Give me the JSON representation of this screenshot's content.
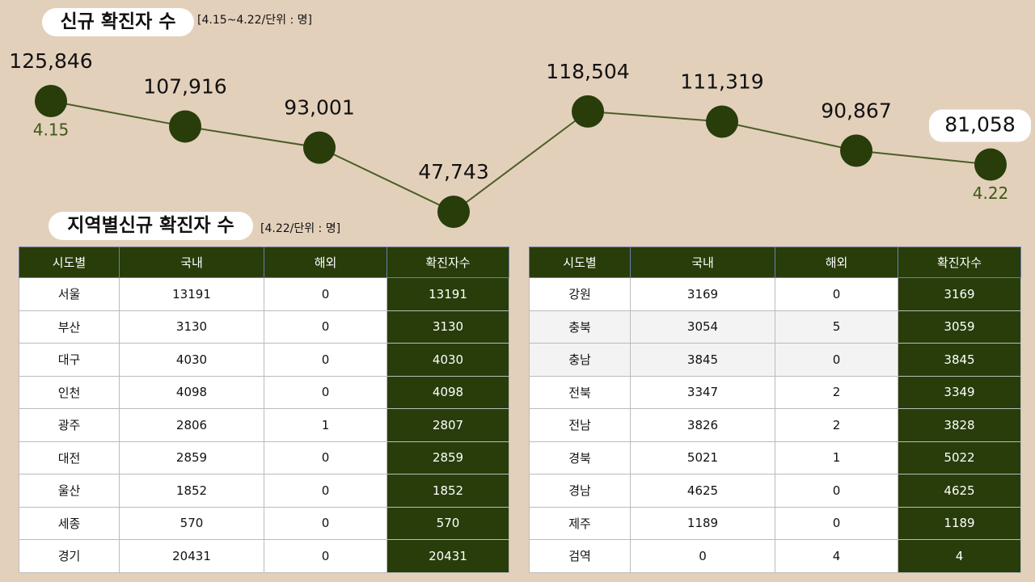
{
  "chart_data": {
    "type": "line",
    "title": "신규 확진자 수",
    "subtitle": "[4.15~4.22/단위 : 명]",
    "categories": [
      "4.15",
      null,
      null,
      null,
      null,
      null,
      null,
      "4.22"
    ],
    "values": [
      125846,
      107916,
      93001,
      47743,
      118504,
      111319,
      90867,
      81058
    ],
    "value_labels": [
      "125,846",
      "107,916",
      "93,001",
      "47,743",
      "118,504",
      "111,319",
      "90,867",
      "81,058"
    ],
    "color": "#4b5e25",
    "marker_color": "#283d0a"
  },
  "region_section": {
    "title": "지역별신규 확진자 수",
    "subtitle": "[4.22/단위 : 명]"
  },
  "tables": [
    {
      "columns": [
        "시도별",
        "국내",
        "해외",
        "확진자수"
      ],
      "rows": [
        [
          "서울",
          13191,
          0,
          13191
        ],
        [
          "부산",
          3130,
          0,
          3130
        ],
        [
          "대구",
          4030,
          0,
          4030
        ],
        [
          "인천",
          4098,
          0,
          4098
        ],
        [
          "광주",
          2806,
          1,
          2807
        ],
        [
          "대전",
          2859,
          0,
          2859
        ],
        [
          "울산",
          1852,
          0,
          1852
        ],
        [
          "세종",
          570,
          0,
          570
        ],
        [
          "경기",
          20431,
          0,
          20431
        ]
      ]
    },
    {
      "columns": [
        "시도별",
        "국내",
        "해외",
        "확진자수"
      ],
      "rows": [
        [
          "강원",
          3169,
          0,
          3169
        ],
        [
          "충북",
          3054,
          5,
          3059
        ],
        [
          "충남",
          3845,
          0,
          3845
        ],
        [
          "전북",
          3347,
          2,
          3349
        ],
        [
          "전남",
          3826,
          2,
          3828
        ],
        [
          "경북",
          5021,
          1,
          5022
        ],
        [
          "경남",
          4625,
          0,
          4625
        ],
        [
          "제주",
          1189,
          0,
          1189
        ],
        [
          "검역",
          0,
          4,
          4
        ]
      ]
    }
  ]
}
